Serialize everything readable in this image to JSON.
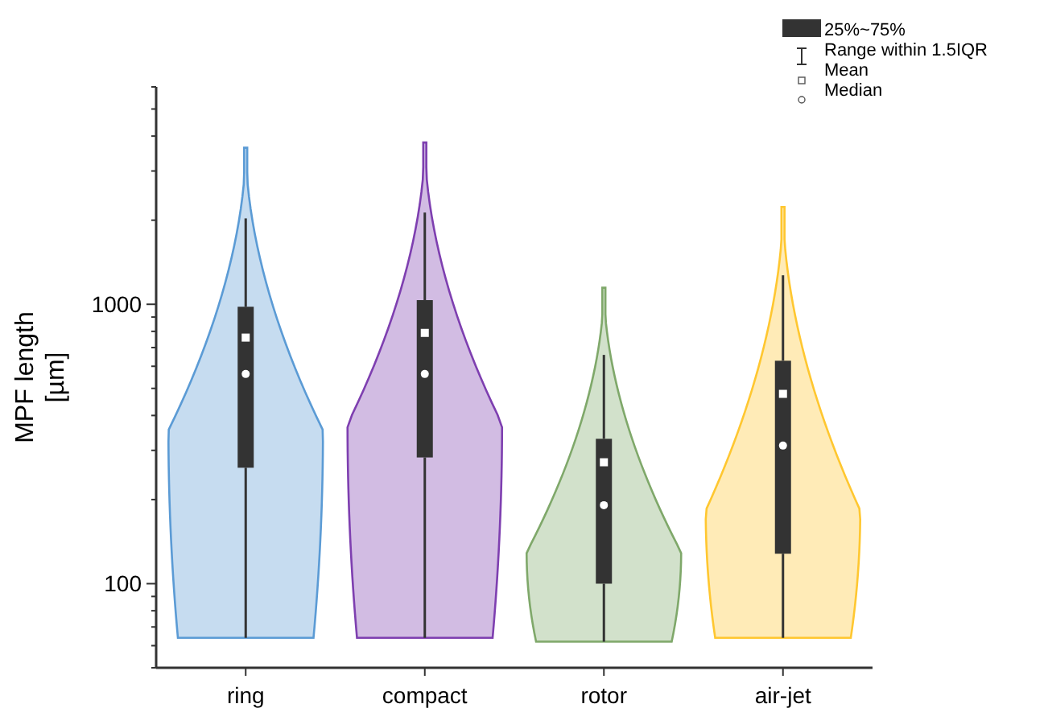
{
  "chart_data": {
    "type": "box",
    "ylabel": "MPF length\n[µm]",
    "categories": [
      "ring",
      "compact",
      "rotor",
      "air-jet"
    ],
    "series": [
      {
        "color": "#333333",
        "boxes": [
          {
            "low": 64,
            "q1": 260,
            "median": 563,
            "q3": 980,
            "high": 2030,
            "mean": 760
          },
          {
            "low": 64,
            "q1": 283,
            "median": 563,
            "q3": 1035,
            "high": 2130,
            "mean": 790
          },
          {
            "low": 62,
            "q1": 100,
            "median": 191,
            "q3": 330,
            "high": 659,
            "mean": 272
          },
          {
            "low": 64,
            "q1": 128,
            "median": 312,
            "q3": 628,
            "high": 1270,
            "mean": 478
          }
        ]
      }
    ],
    "log": true,
    "ylim": [
      50,
      6000
    ],
    "yticks": [
      {
        "value": 50,
        "label": null
      },
      {
        "value": 60,
        "label": null
      },
      {
        "value": 70,
        "label": null
      },
      {
        "value": 80,
        "label": null
      },
      {
        "value": 90,
        "label": null
      },
      100,
      {
        "value": 200,
        "label": null
      },
      {
        "value": 300,
        "label": null
      },
      {
        "value": 400,
        "label": null
      },
      {
        "value": 500,
        "label": null
      },
      {
        "value": 600,
        "label": null
      },
      {
        "value": 700,
        "label": null
      },
      {
        "value": 800,
        "label": null
      },
      {
        "value": 900,
        "label": null
      },
      1000,
      {
        "value": 2000,
        "label": null
      },
      {
        "value": 3000,
        "label": null
      },
      {
        "value": 4000,
        "label": null
      },
      {
        "value": 5000,
        "label": null
      },
      {
        "value": 6000,
        "label": null
      }
    ],
    "annotations": [
      "25%~75%",
      "Range within 1.5IQR",
      "Mean",
      "Median"
    ]
  }
}
